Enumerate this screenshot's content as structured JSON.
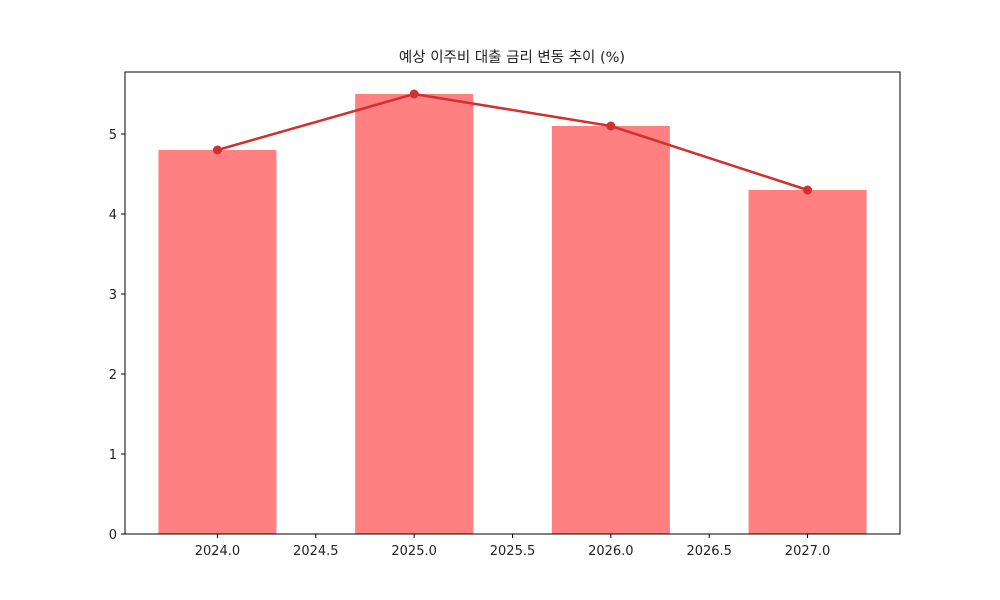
{
  "chart_data": {
    "type": "bar",
    "title": "예상 이주비 대출 금리 변동 추이 (%)",
    "xlabel": "",
    "ylabel": "",
    "categories": [
      2024,
      2025,
      2026,
      2027
    ],
    "series": [
      {
        "name": "bar",
        "type": "bar",
        "values": [
          4.8,
          5.5,
          5.1,
          4.3
        ],
        "color": "#ff8080"
      },
      {
        "name": "line",
        "type": "line",
        "values": [
          4.8,
          5.5,
          5.1,
          4.3
        ],
        "color": "#d03030",
        "marker": "circle"
      }
    ],
    "bar_width": 0.6,
    "xlim": [
      2023.53,
      2027.47
    ],
    "ylim": [
      0,
      5.775
    ],
    "xticks": [
      "2024.0",
      "2024.5",
      "2025.0",
      "2025.5",
      "2026.0",
      "2026.5",
      "2027.0"
    ],
    "yticks": [
      "0",
      "1",
      "2",
      "3",
      "4",
      "5"
    ],
    "grid": false,
    "legend": null
  }
}
